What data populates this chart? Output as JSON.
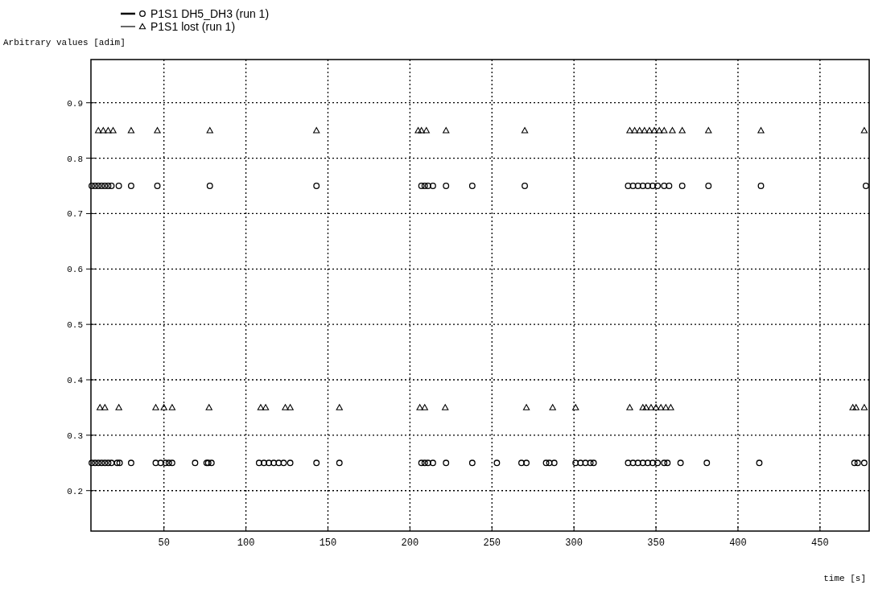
{
  "chart_data": {
    "type": "scatter",
    "ylabel": "Arbitrary values [adim]",
    "xlabel": "time [s]",
    "xlim": [
      5.5,
      480
    ],
    "xticks": [
      50,
      100,
      150,
      200,
      250,
      300,
      350,
      400,
      450
    ],
    "ylim": [
      0.127,
      0.978
    ],
    "yticks": [
      0.2,
      0.3,
      0.4,
      0.5,
      0.6,
      0.7,
      0.8,
      0.9
    ],
    "grid": true,
    "legend": "top left",
    "series": [
      {
        "name": "P1S1 DH5_DH3 (run 1)",
        "color": "#000000",
        "marker": "circle",
        "x": [
          6,
          8,
          10,
          12,
          14,
          16,
          18,
          22.5,
          30,
          46,
          78,
          143,
          207,
          209,
          211,
          214,
          222,
          238,
          270,
          333,
          336,
          339,
          342,
          345,
          348,
          351,
          355,
          358,
          366,
          382,
          414,
          478,
          6,
          8,
          10,
          12,
          14,
          16,
          18,
          21.5,
          23,
          30,
          45,
          48,
          51,
          53,
          55,
          69,
          76,
          77,
          79,
          108,
          111,
          114,
          117,
          120,
          123,
          127,
          143,
          157,
          207,
          209,
          211,
          214,
          222,
          238,
          253,
          268,
          271,
          283,
          285,
          288,
          301,
          304,
          307,
          310,
          312,
          333,
          336,
          339,
          342,
          345,
          348,
          351,
          355,
          357,
          365,
          381,
          413,
          471,
          473,
          477
        ],
        "values": [
          0.75,
          0.75,
          0.75,
          0.75,
          0.75,
          0.75,
          0.75,
          0.75,
          0.75,
          0.75,
          0.75,
          0.75,
          0.75,
          0.75,
          0.75,
          0.75,
          0.75,
          0.75,
          0.75,
          0.75,
          0.75,
          0.75,
          0.75,
          0.75,
          0.75,
          0.75,
          0.75,
          0.75,
          0.75,
          0.75,
          0.75,
          0.75,
          0.25,
          0.25,
          0.25,
          0.25,
          0.25,
          0.25,
          0.25,
          0.25,
          0.25,
          0.25,
          0.25,
          0.25,
          0.25,
          0.25,
          0.25,
          0.25,
          0.25,
          0.25,
          0.25,
          0.25,
          0.25,
          0.25,
          0.25,
          0.25,
          0.25,
          0.25,
          0.25,
          0.25,
          0.25,
          0.25,
          0.25,
          0.25,
          0.25,
          0.25,
          0.25,
          0.25,
          0.25,
          0.25,
          0.25,
          0.25,
          0.25,
          0.25,
          0.25,
          0.25,
          0.25,
          0.25,
          0.25,
          0.25,
          0.25,
          0.25,
          0.25,
          0.25,
          0.25,
          0.25,
          0.25,
          0.25,
          0.25,
          0.25,
          0.25,
          0.25
        ]
      },
      {
        "name": "P1S1 lost (run 1)",
        "color": "#000000",
        "marker": "triangle",
        "x": [
          10,
          13,
          16,
          19,
          30,
          46,
          78,
          143,
          205,
          207,
          210,
          222,
          270,
          334,
          337,
          340,
          343,
          346,
          349,
          352,
          355,
          360,
          366,
          382,
          414,
          477,
          11,
          14,
          22.5,
          45,
          50,
          55,
          77.5,
          109,
          112,
          124,
          127,
          157,
          206,
          209,
          221.5,
          271,
          287,
          301,
          334,
          342,
          344,
          347,
          350,
          353,
          356,
          359,
          470,
          472,
          477
        ],
        "values": [
          0.85,
          0.85,
          0.85,
          0.85,
          0.85,
          0.85,
          0.85,
          0.85,
          0.85,
          0.85,
          0.85,
          0.85,
          0.85,
          0.85,
          0.85,
          0.85,
          0.85,
          0.85,
          0.85,
          0.85,
          0.85,
          0.85,
          0.85,
          0.85,
          0.85,
          0.85,
          0.35,
          0.35,
          0.35,
          0.35,
          0.35,
          0.35,
          0.35,
          0.35,
          0.35,
          0.35,
          0.35,
          0.35,
          0.35,
          0.35,
          0.35,
          0.35,
          0.35,
          0.35,
          0.35,
          0.35,
          0.35,
          0.35,
          0.35,
          0.35,
          0.35,
          0.35,
          0.35,
          0.35,
          0.35
        ]
      }
    ]
  }
}
